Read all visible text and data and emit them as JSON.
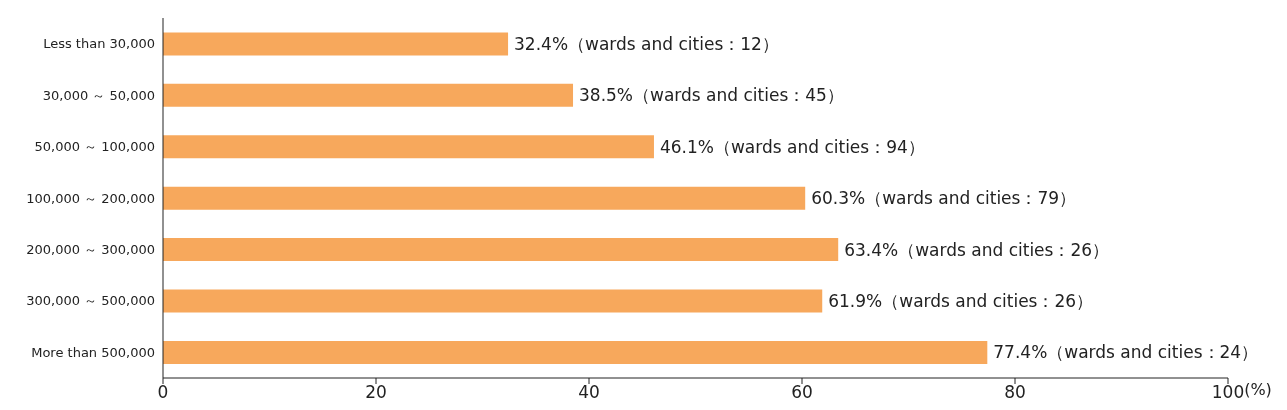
{
  "chart_data": {
    "type": "bar",
    "orientation": "horizontal",
    "xlabel": "(%)",
    "categories": [
      "Less than 30,000",
      "30,000 ～ 50,000",
      "50,000 ～ 100,000",
      "100,000 ～ 200,000",
      "200,000 ～ 300,000",
      "300,000 ～ 500,000",
      "More than 500,000"
    ],
    "values": [
      32.4,
      38.5,
      46.1,
      60.3,
      63.4,
      61.9,
      77.4
    ],
    "value_labels": [
      "32.4%（wards and cities：12）",
      "38.5%（wards and cities：45）",
      "46.1%（wards and cities：94）",
      "60.3%（wards and cities：79）",
      "63.4%（wards and cities：26）",
      "61.9%（wards and cities：26）",
      "77.4%（wards and cities：24）"
    ],
    "color": "#f7a85c",
    "xlim": [
      0,
      100
    ],
    "xticks": [
      0,
      20,
      40,
      60,
      80,
      100
    ],
    "grid": false,
    "legend": false
  }
}
